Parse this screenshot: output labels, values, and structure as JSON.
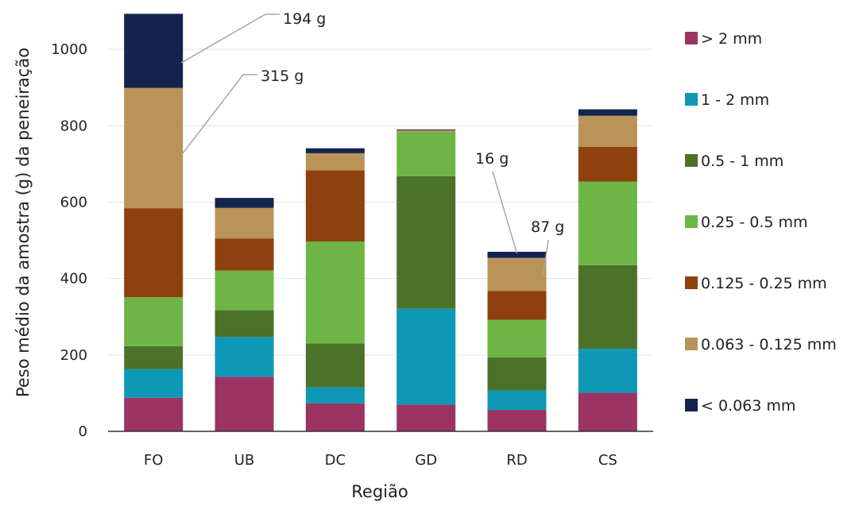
{
  "chart_data": {
    "type": "bar",
    "stacked": true,
    "xlabel": "Região",
    "ylabel": "Peso médio da amostra (g) da peneiração",
    "ylim": [
      0,
      1100
    ],
    "yticks": [
      0,
      200,
      400,
      600,
      800,
      1000
    ],
    "grid": true,
    "legend_position": "right",
    "categories": [
      "FO",
      "UB",
      "DC",
      "GD",
      "RD",
      "CS"
    ],
    "series": [
      {
        "name": "> 2 mm",
        "color": "#9b3463",
        "values": [
          88,
          143,
          73,
          70,
          56,
          101
        ]
      },
      {
        "name": "1 - 2 mm",
        "color": "#0e98b6",
        "values": [
          75,
          104,
          42,
          251,
          51,
          115
        ]
      },
      {
        "name": "0.5 - 1 mm",
        "color": "#4b7229",
        "values": [
          60,
          70,
          115,
          347,
          87,
          219
        ]
      },
      {
        "name": "0.25 - 0.5 mm",
        "color": "#6db544",
        "values": [
          128,
          104,
          267,
          115,
          98,
          219
        ]
      },
      {
        "name": "0.125 - 0.25 mm",
        "color": "#8f400f",
        "values": [
          233,
          84,
          186,
          0,
          75,
          91
        ]
      },
      {
        "name": "0.063 - 0.125 mm",
        "color": "#b99357",
        "values": [
          315,
          80,
          45,
          5,
          87,
          81
        ]
      },
      {
        "name": "< 0.063 mm",
        "color": "#13254e",
        "values": [
          194,
          26,
          13,
          2,
          16,
          17
        ]
      }
    ],
    "annotations": [
      {
        "text": "194 g",
        "category": "FO",
        "series": "< 0.063 mm"
      },
      {
        "text": "315 g",
        "category": "FO",
        "series": "0.063 - 0.125 mm"
      },
      {
        "text": "16 g",
        "category": "RD",
        "series": "< 0.063 mm"
      },
      {
        "text": "87 g",
        "category": "RD",
        "series": "0.063 - 0.125 mm"
      }
    ]
  }
}
